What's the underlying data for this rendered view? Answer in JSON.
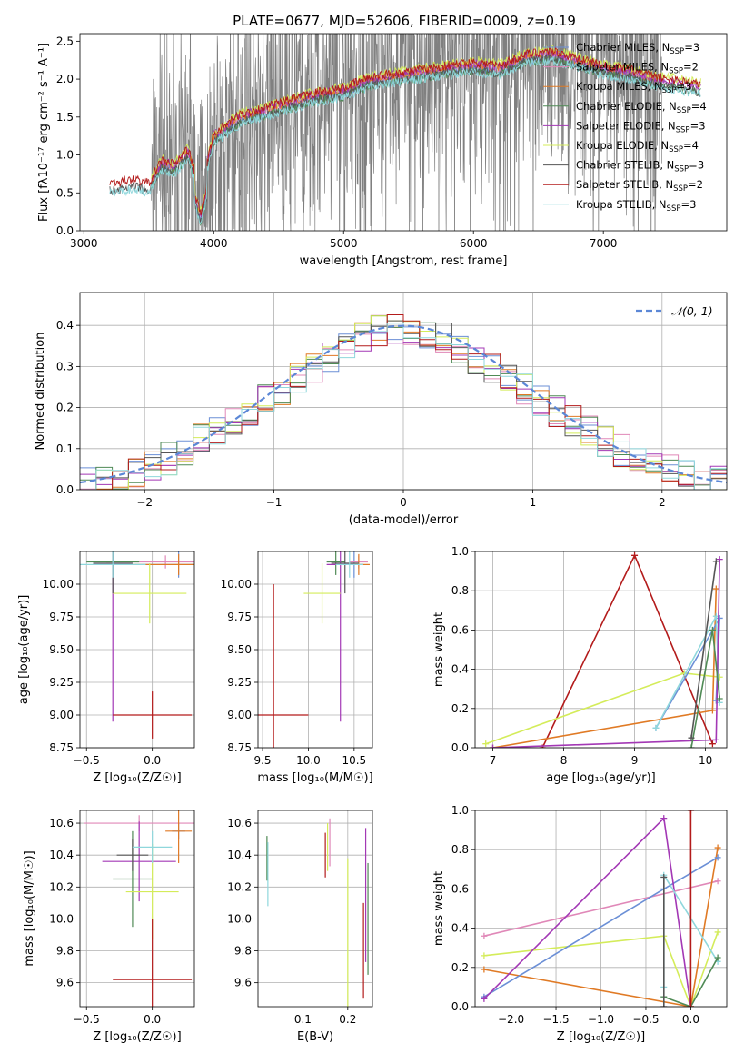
{
  "page_title": "PLATE=0677, MJD=52606, FIBERID=0009, z=0.19",
  "colors": {
    "Chabrier MILES": "#6b8fd6",
    "Salpeter MILES": "#e088b8",
    "Kroupa MILES": "#e07a25",
    "Chabrier ELODIE": "#4f8a55",
    "Salpeter ELODIE": "#a338b5",
    "Kroupa ELODIE": "#d4ec5a",
    "Chabrier STELIB": "#555555",
    "Salpeter STELIB": "#b31b1b",
    "Kroupa STELIB": "#8fd7dc",
    "data": "#808080",
    "gaussian": "#5b87d6"
  },
  "chart_data": [
    {
      "id": "spectrum",
      "type": "line",
      "title": "PLATE=0677, MJD=52606, FIBERID=0009, z=0.19",
      "xlabel": "wavelength [Angstrom, rest frame]",
      "ylabel": "Flux [fλ10⁻¹⁷ erg cm⁻² s⁻¹ A⁻¹]",
      "xlim": [
        2970,
        7950
      ],
      "ylim": [
        0.0,
        2.6
      ],
      "xticks": [
        "3000",
        "4000",
        "5000",
        "6000",
        "7000"
      ],
      "yticks": [
        "0.0",
        "0.5",
        "1.0",
        "1.5",
        "2.0",
        "2.5"
      ],
      "legend_position": "right",
      "legend": [
        {
          "name": "Chabrier MILES",
          "nssp": "3"
        },
        {
          "name": "Salpeter MILES",
          "nssp": "2"
        },
        {
          "name": "Kroupa MILES",
          "nssp": "3"
        },
        {
          "name": "Chabrier ELODIE",
          "nssp": "4"
        },
        {
          "name": "Salpeter ELODIE",
          "nssp": "3"
        },
        {
          "name": "Kroupa ELODIE",
          "nssp": "4"
        },
        {
          "name": "Chabrier STELIB",
          "nssp": "3"
        },
        {
          "name": "Salpeter STELIB",
          "nssp": "2"
        },
        {
          "name": "Kroupa STELIB",
          "nssp": "3"
        }
      ],
      "data_range": [
        3520,
        7450
      ],
      "model_envelope": [
        [
          3200,
          0.55
        ],
        [
          3400,
          0.6
        ],
        [
          3500,
          0.55
        ],
        [
          3600,
          0.85
        ],
        [
          3700,
          0.8
        ],
        [
          3800,
          1.0
        ],
        [
          3900,
          0.5
        ],
        [
          4000,
          1.2
        ],
        [
          4200,
          1.45
        ],
        [
          4400,
          1.55
        ],
        [
          4600,
          1.65
        ],
        [
          4800,
          1.75
        ],
        [
          5000,
          1.8
        ],
        [
          5200,
          1.95
        ],
        [
          5400,
          2.0
        ],
        [
          5600,
          2.05
        ],
        [
          5800,
          2.1
        ],
        [
          6000,
          2.15
        ],
        [
          6200,
          2.1
        ],
        [
          6400,
          2.25
        ],
        [
          6600,
          2.3
        ],
        [
          6800,
          2.2
        ],
        [
          7000,
          2.1
        ],
        [
          7200,
          2.05
        ],
        [
          7400,
          1.95
        ],
        [
          7600,
          1.9
        ],
        [
          7750,
          1.85
        ]
      ]
    },
    {
      "id": "residuals",
      "type": "histogram",
      "xlabel": "(data-model)/error",
      "ylabel": "Normed distribution",
      "xlim": [
        -2.5,
        2.5
      ],
      "ylim": [
        0.0,
        0.48
      ],
      "xticks": [
        "−2",
        "−1",
        "0",
        "1",
        "2"
      ],
      "yticks": [
        "0.0",
        "0.1",
        "0.2",
        "0.3",
        "0.4"
      ],
      "legend_label": "𝒩(0, 1)",
      "legend_position": "top-right",
      "bins": [
        -2.5,
        -2.375,
        -2.25,
        -2.125,
        -2.0,
        -1.875,
        -1.75,
        -1.625,
        -1.5,
        -1.375,
        -1.25,
        -1.125,
        -1.0,
        -0.875,
        -0.75,
        -0.625,
        -0.5,
        -0.375,
        -0.25,
        -0.125,
        0.0,
        0.125,
        0.25,
        0.375,
        0.5,
        0.625,
        0.75,
        0.875,
        1.0,
        1.125,
        1.25,
        1.375,
        1.5,
        1.625,
        1.75,
        1.875,
        2.0,
        2.125,
        2.25,
        2.375,
        2.5
      ],
      "reference_density": [
        0.018,
        0.024,
        0.032,
        0.045,
        0.06,
        0.075,
        0.095,
        0.12,
        0.14,
        0.165,
        0.19,
        0.22,
        0.245,
        0.275,
        0.3,
        0.32,
        0.345,
        0.37,
        0.385,
        0.39,
        0.39,
        0.385,
        0.37,
        0.345,
        0.32,
        0.3,
        0.275,
        0.245,
        0.22,
        0.19,
        0.165,
        0.14,
        0.12,
        0.095,
        0.075,
        0.06,
        0.045,
        0.032,
        0.024,
        0.018
      ]
    },
    {
      "id": "age_vs_Z",
      "type": "scatter",
      "xlabel": "Z [log₁₀(Z/Z☉)]",
      "ylabel": "age  [log₁₀(age/yr)]",
      "xlim": [
        -0.55,
        0.32
      ],
      "ylim": [
        8.75,
        10.25
      ],
      "xticks": [
        "−0.5",
        "0.0"
      ],
      "yticks": [
        "8.75",
        "9.00",
        "9.25",
        "9.50",
        "9.75",
        "10.00"
      ],
      "points": [
        {
          "series": "Chabrier MILES",
          "x": 0.2,
          "y": 10.15,
          "xerr": 0.33,
          "yerr": 0.1
        },
        {
          "series": "Salpeter MILES",
          "x": 0.1,
          "y": 10.17,
          "xerr": 0.45,
          "yerr": 0.05
        },
        {
          "series": "Kroupa MILES",
          "x": 0.2,
          "y": 10.15,
          "xerr": 0.35,
          "yerr": 0.08
        },
        {
          "series": "Chabrier ELODIE",
          "x": -0.3,
          "y": 10.17,
          "xerr": 0.2,
          "yerr": 0.1
        },
        {
          "series": "Salpeter ELODIE",
          "x": -0.3,
          "y": 10.15,
          "xerr": 0.15,
          "yerr": 1.2
        },
        {
          "series": "Kroupa ELODIE",
          "x": -0.02,
          "y": 9.93,
          "xerr": 0.28,
          "yerr": 0.23
        },
        {
          "series": "Chabrier STELIB",
          "x": -0.3,
          "y": 10.16,
          "xerr": 0.15,
          "yerr": 0.23
        },
        {
          "series": "Salpeter STELIB",
          "x": 0.0,
          "y": 9.0,
          "xerr": 0.3,
          "yerr": 0.18
        },
        {
          "series": "Kroupa STELIB",
          "x": -0.3,
          "y": 10.15,
          "xerr": 0.25,
          "yerr": 0.1
        }
      ]
    },
    {
      "id": "age_vs_mass",
      "type": "scatter",
      "xlabel": "mass [log₁₀(M/M☉)]",
      "xlim": [
        9.45,
        10.7
      ],
      "ylim": [
        8.75,
        10.25
      ],
      "xticks": [
        "9.5",
        "10.0",
        "10.5"
      ],
      "yticks": [
        "8.75",
        "9.00",
        "9.25",
        "9.50",
        "9.75",
        "10.00"
      ],
      "points": [
        {
          "series": "Chabrier MILES",
          "x": 10.5,
          "y": 10.15,
          "xerr": 0.1,
          "yerr": 0.1
        },
        {
          "series": "Salpeter MILES",
          "x": 10.55,
          "y": 10.17,
          "xerr": 0.1,
          "yerr": 0.05
        },
        {
          "series": "Kroupa MILES",
          "x": 10.55,
          "y": 10.15,
          "xerr": 0.12,
          "yerr": 0.08
        },
        {
          "series": "Chabrier ELODIE",
          "x": 10.3,
          "y": 10.17,
          "xerr": 0.1,
          "yerr": 0.1
        },
        {
          "series": "Salpeter ELODIE",
          "x": 10.35,
          "y": 10.15,
          "xerr": 0.15,
          "yerr": 1.2
        },
        {
          "series": "Kroupa ELODIE",
          "x": 10.15,
          "y": 9.93,
          "xerr": 0.2,
          "yerr": 0.23
        },
        {
          "series": "Chabrier STELIB",
          "x": 10.4,
          "y": 10.16,
          "xerr": 0.15,
          "yerr": 0.23
        },
        {
          "series": "Salpeter STELIB",
          "x": 9.62,
          "y": 9.0,
          "xerr": 0.38,
          "yerr": 1.0
        },
        {
          "series": "Kroupa STELIB",
          "x": 10.45,
          "y": 10.15,
          "xerr": 0.15,
          "yerr": 0.1
        }
      ]
    },
    {
      "id": "weight_vs_age",
      "type": "line",
      "xlabel": "age  [log₁₀(age/yr)]",
      "ylabel": "mass weight",
      "xlim": [
        6.75,
        10.3
      ],
      "ylim": [
        0.0,
        1.0
      ],
      "xticks": [
        "7",
        "8",
        "9",
        "10"
      ],
      "yticks": [
        "0.0",
        "0.2",
        "0.4",
        "0.6",
        "0.8",
        "1.0"
      ],
      "series": [
        {
          "name": "Salpeter STELIB",
          "x": [
            7.7,
            9.0,
            10.1
          ],
          "y": [
            0.0,
            0.98,
            0.02
          ]
        },
        {
          "name": "Kroupa ELODIE",
          "x": [
            6.9,
            9.7,
            10.2
          ],
          "y": [
            0.02,
            0.38,
            0.36
          ]
        },
        {
          "name": "Kroupa MILES",
          "x": [
            7.0,
            10.1,
            10.15
          ],
          "y": [
            0.0,
            0.19,
            0.81
          ]
        },
        {
          "name": "Chabrier MILES",
          "x": [
            9.3,
            10.2,
            10.15
          ],
          "y": [
            0.1,
            0.66,
            0.24
          ]
        },
        {
          "name": "Kroupa STELIB",
          "x": [
            9.3,
            10.15,
            10.2
          ],
          "y": [
            0.1,
            0.67,
            0.23
          ]
        },
        {
          "name": "Salpeter ELODIE",
          "x": [
            7.0,
            10.15,
            10.2
          ],
          "y": [
            0.0,
            0.04,
            0.96
          ]
        },
        {
          "name": "Chabrier ELODIE",
          "x": [
            9.8,
            10.1,
            10.2
          ],
          "y": [
            0.0,
            0.6,
            0.25
          ]
        },
        {
          "name": "Chabrier STELIB",
          "x": [
            9.8,
            10.15
          ],
          "y": [
            0.05,
            0.95
          ]
        }
      ]
    },
    {
      "id": "mass_vs_Z",
      "type": "scatter",
      "xlabel": "Z [log₁₀(Z/Z☉)]",
      "ylabel": "mass [log₁₀(M/M☉)]",
      "xlim": [
        -0.55,
        0.32
      ],
      "ylim": [
        9.45,
        10.68
      ],
      "xticks": [
        "−0.5",
        "0.0"
      ],
      "yticks": [
        "9.6",
        "9.8",
        "10.0",
        "10.2",
        "10.4",
        "10.6"
      ],
      "points": [
        {
          "series": "Chabrier MILES",
          "x": 0.2,
          "y": 10.55,
          "xerr": 0.05,
          "yerr": 0.05
        },
        {
          "series": "Salpeter MILES",
          "x": -0.1,
          "y": 10.6,
          "xerr": 0.42,
          "yerr": 0.05
        },
        {
          "series": "Kroupa MILES",
          "x": 0.2,
          "y": 10.55,
          "xerr": 0.1,
          "yerr": 0.2
        },
        {
          "series": "Chabrier ELODIE",
          "x": -0.15,
          "y": 10.25,
          "xerr": 0.15,
          "yerr": 0.3
        },
        {
          "series": "Salpeter ELODIE",
          "x": -0.1,
          "y": 10.36,
          "xerr": 0.28,
          "yerr": 0.25
        },
        {
          "series": "Kroupa ELODIE",
          "x": 0.0,
          "y": 10.17,
          "xerr": 0.2,
          "yerr": 0.3
        },
        {
          "series": "Chabrier STELIB",
          "x": -0.15,
          "y": 10.4,
          "xerr": 0.12,
          "yerr": 0.1
        },
        {
          "series": "Salpeter STELIB",
          "x": 0.0,
          "y": 9.62,
          "xerr": 0.3,
          "yerr": 0.38
        },
        {
          "series": "Kroupa STELIB",
          "x": 0.0,
          "y": 10.45,
          "xerr": 0.15,
          "yerr": 0.1
        }
      ]
    },
    {
      "id": "mass_vs_ebv",
      "type": "scatter",
      "xlabel": "E(B-V)",
      "xlim": [
        0.0,
        0.255
      ],
      "ylim": [
        9.45,
        10.68
      ],
      "xticks": [
        "0.1",
        "0.2"
      ],
      "yticks": [
        "9.6",
        "9.8",
        "10.0",
        "10.2",
        "10.4",
        "10.6"
      ],
      "points": [
        {
          "series": "Chabrier ELODIE",
          "x": 0.02,
          "y": 10.38,
          "yerr": 0.14
        },
        {
          "series": "Kroupa STELIB",
          "x": 0.022,
          "y": 10.28,
          "yerr": 0.2
        },
        {
          "series": "Salpeter STELIB",
          "x": 0.15,
          "y": 10.4,
          "yerr": 0.14
        },
        {
          "series": "Kroupa ELODIE",
          "x": 0.155,
          "y": 10.45,
          "yerr": 0.15
        },
        {
          "series": "Salpeter MILES",
          "x": 0.16,
          "y": 10.48,
          "yerr": 0.15
        },
        {
          "series": "Kroupa ELODIE",
          "x": 0.2,
          "y": 9.8,
          "yerr": 0.58
        },
        {
          "series": "Salpeter ELODIE",
          "x": 0.24,
          "y": 10.15,
          "yerr": 0.42
        },
        {
          "series": "Salpeter STELIB",
          "x": 0.235,
          "y": 9.8,
          "yerr": 0.3
        },
        {
          "series": "Chabrier ELODIE",
          "x": 0.245,
          "y": 10.0,
          "yerr": 0.35
        }
      ]
    },
    {
      "id": "weight_vs_Z",
      "type": "line",
      "xlabel": "Z [log₁₀(Z/Z☉)]",
      "ylabel": "mass weight",
      "xlim": [
        -2.4,
        0.4
      ],
      "ylim": [
        0.0,
        1.0
      ],
      "xticks": [
        "−2.0",
        "−1.5",
        "−1.0",
        "−0.5",
        "0.0"
      ],
      "yticks": [
        "0.0",
        "0.2",
        "0.4",
        "0.6",
        "0.8",
        "1.0"
      ],
      "series": [
        {
          "name": "Salpeter MILES",
          "x": [
            -2.3,
            0.3
          ],
          "y": [
            0.36,
            0.64
          ]
        },
        {
          "name": "Kroupa ELODIE",
          "x": [
            -2.3,
            -0.3,
            0.0,
            0.3
          ],
          "y": [
            0.26,
            0.36,
            0.0,
            0.38
          ]
        },
        {
          "name": "Kroupa MILES",
          "x": [
            -2.3,
            0.0,
            0.3
          ],
          "y": [
            0.19,
            0.0,
            0.81
          ]
        },
        {
          "name": "Chabrier MILES",
          "x": [
            -2.3,
            -0.3,
            0.3
          ],
          "y": [
            0.05,
            0.6,
            0.76
          ]
        },
        {
          "name": "Salpeter ELODIE",
          "x": [
            -2.3,
            -0.3,
            0.0
          ],
          "y": [
            0.04,
            0.96,
            0.0
          ]
        },
        {
          "name": "Kroupa STELIB",
          "x": [
            -0.3,
            -0.3,
            0.3
          ],
          "y": [
            0.1,
            0.67,
            0.23
          ]
        },
        {
          "name": "Chabrier ELODIE",
          "x": [
            -0.3,
            0.0,
            0.3
          ],
          "y": [
            0.05,
            0.0,
            0.25
          ]
        },
        {
          "name": "Salpeter STELIB",
          "x": [
            0.0,
            0.0
          ],
          "y": [
            0.0,
            1.0
          ]
        },
        {
          "name": "Chabrier STELIB",
          "x": [
            -0.3,
            -0.3
          ],
          "y": [
            0.0,
            0.66
          ]
        }
      ]
    }
  ]
}
